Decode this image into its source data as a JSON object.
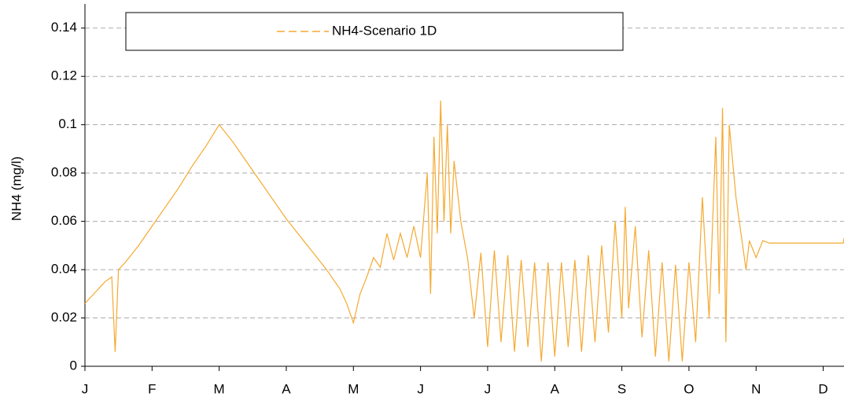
{
  "chart_data": {
    "type": "line",
    "y_label": "NH4 (mg/l)",
    "xlim": [
      0,
      11.31
    ],
    "xticks": [
      {
        "value": 0,
        "label": "J"
      },
      {
        "value": 1,
        "label": "F"
      },
      {
        "value": 2,
        "label": "M"
      },
      {
        "value": 3,
        "label": "A"
      },
      {
        "value": 4,
        "label": "M"
      },
      {
        "value": 5,
        "label": "J"
      },
      {
        "value": 6,
        "label": "J"
      },
      {
        "value": 7,
        "label": "A"
      },
      {
        "value": 8,
        "label": "S"
      },
      {
        "value": 9,
        "label": "O"
      },
      {
        "value": 10,
        "label": "N"
      },
      {
        "value": 11,
        "label": "D"
      }
    ],
    "ylim": [
      0,
      0.15
    ],
    "yticks": [
      0,
      0.02,
      0.04,
      0.06,
      0.08,
      0.1,
      0.12,
      0.14
    ],
    "grid": true,
    "legend": "top",
    "x": [
      0,
      0.1,
      0.2,
      0.3,
      0.4,
      0.45,
      0.5,
      0.6,
      0.8,
      1.0,
      1.2,
      1.4,
      1.6,
      1.8,
      2.0,
      2.2,
      2.4,
      2.6,
      2.8,
      3.0,
      3.2,
      3.4,
      3.6,
      3.8,
      3.9,
      4.0,
      4.1,
      4.2,
      4.3,
      4.4,
      4.5,
      4.6,
      4.7,
      4.8,
      4.9,
      5.0,
      5.1,
      5.15,
      5.2,
      5.25,
      5.3,
      5.35,
      5.4,
      5.45,
      5.5,
      5.6,
      5.7,
      5.8,
      5.9,
      6.0,
      6.1,
      6.2,
      6.3,
      6.4,
      6.5,
      6.6,
      6.7,
      6.8,
      6.9,
      7.0,
      7.1,
      7.2,
      7.3,
      7.4,
      7.5,
      7.6,
      7.7,
      7.8,
      7.9,
      8.0,
      8.05,
      8.1,
      8.2,
      8.3,
      8.4,
      8.5,
      8.6,
      8.7,
      8.8,
      8.9,
      9.0,
      9.1,
      9.2,
      9.3,
      9.4,
      9.45,
      9.5,
      9.55,
      9.6,
      9.7,
      9.8,
      9.85,
      9.9,
      10.0,
      10.1,
      10.2,
      11.3,
      11.31
    ],
    "series": [
      {
        "name": "NH4-Scenario 1D",
        "color": "#f5a930",
        "values": [
          0.026,
          0.029,
          0.032,
          0.035,
          0.037,
          0.006,
          0.04,
          0.043,
          0.05,
          0.058,
          0.066,
          0.074,
          0.083,
          0.091,
          0.1,
          0.093,
          0.085,
          0.077,
          0.069,
          0.061,
          0.054,
          0.047,
          0.04,
          0.032,
          0.026,
          0.018,
          0.03,
          0.037,
          0.045,
          0.041,
          0.055,
          0.044,
          0.055,
          0.045,
          0.058,
          0.045,
          0.08,
          0.03,
          0.095,
          0.055,
          0.11,
          0.06,
          0.1,
          0.055,
          0.085,
          0.06,
          0.045,
          0.02,
          0.047,
          0.008,
          0.048,
          0.01,
          0.046,
          0.006,
          0.044,
          0.008,
          0.043,
          0.002,
          0.043,
          0.004,
          0.043,
          0.008,
          0.044,
          0.006,
          0.046,
          0.01,
          0.05,
          0.014,
          0.06,
          0.02,
          0.066,
          0.024,
          0.058,
          0.012,
          0.048,
          0.004,
          0.043,
          0.002,
          0.042,
          0.002,
          0.043,
          0.01,
          0.07,
          0.02,
          0.095,
          0.03,
          0.107,
          0.01,
          0.1,
          0.07,
          0.05,
          0.04,
          0.052,
          0.045,
          0.052,
          0.051,
          0.051,
          0.053
        ]
      }
    ]
  }
}
